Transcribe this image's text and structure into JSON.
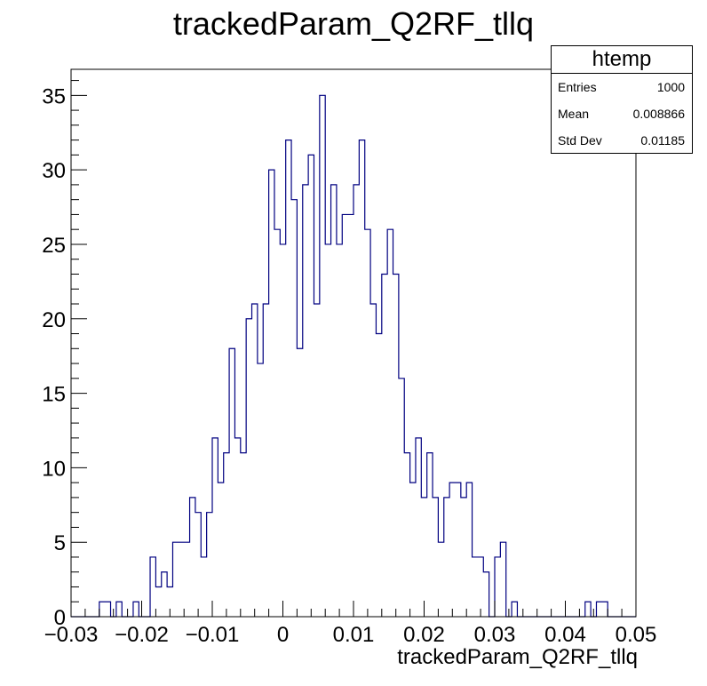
{
  "chart_data": {
    "type": "bar",
    "title": "trackedParam_Q2RF_tllq",
    "xlabel": "trackedParam_Q2RF_tllq",
    "ylabel": "",
    "xlim": [
      -0.03,
      0.05
    ],
    "ylim": [
      0,
      36.75
    ],
    "x_ticks": [
      "−0.03",
      "−0.02",
      "−0.01",
      "0",
      "0.01",
      "0.02",
      "0.03",
      "0.04",
      "0.05"
    ],
    "x_tick_values": [
      -0.03,
      -0.02,
      -0.01,
      0,
      0.01,
      0.02,
      0.03,
      0.04,
      0.05
    ],
    "y_ticks": [
      "0",
      "5",
      "10",
      "15",
      "20",
      "25",
      "30",
      "35"
    ],
    "y_tick_values": [
      0,
      5,
      10,
      15,
      20,
      25,
      30,
      35
    ],
    "bin_width": 0.0008,
    "bin_start": -0.03,
    "values": [
      0,
      0,
      0,
      0,
      0,
      1,
      1,
      0,
      1,
      0,
      0,
      1,
      0,
      0,
      4,
      2,
      3,
      2,
      5,
      5,
      5,
      8,
      7,
      4,
      7,
      12,
      9,
      11,
      18,
      12,
      11,
      20,
      21,
      17,
      21,
      30,
      26,
      25,
      32,
      28,
      18,
      29,
      31,
      21,
      35,
      25,
      29,
      25,
      27,
      27,
      29,
      32,
      26,
      21,
      19,
      23,
      26,
      23,
      16,
      11,
      9,
      12,
      8,
      11,
      8,
      5,
      8,
      9,
      9,
      8,
      9,
      4,
      4,
      3,
      0,
      4,
      5,
      0,
      1,
      0,
      0,
      0,
      0,
      0,
      0,
      0,
      0,
      0,
      0,
      0,
      0,
      1,
      0,
      1,
      1,
      0,
      0,
      0,
      0,
      0
    ],
    "line_color": "#000080",
    "frame_color": "#000000",
    "grid": false,
    "legend": "none"
  },
  "stats_box": {
    "name": "htemp",
    "rows": [
      {
        "label": "Entries",
        "value": "1000"
      },
      {
        "label": "Mean",
        "value": "0.008866"
      },
      {
        "label": "Std Dev",
        "value": "0.01185"
      }
    ]
  }
}
